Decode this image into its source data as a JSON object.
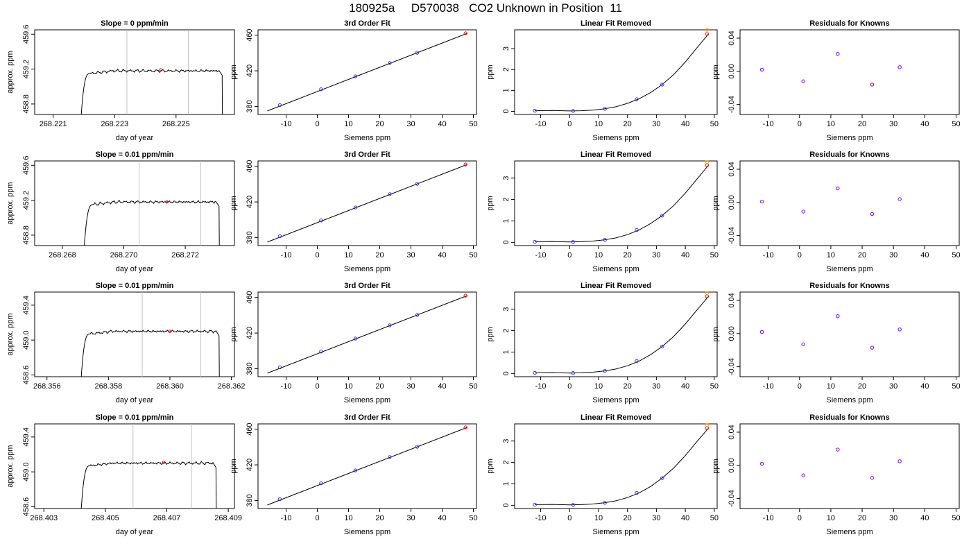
{
  "title": "180925a     D570038   CO2 Unknown in Position  11",
  "colors": {
    "line": "#000000",
    "vline": "#c0c0c0",
    "known": "#3333ff",
    "unknown": "#ff0000",
    "unknown_alt": "#ffa500",
    "resid": "#7b00ff"
  },
  "chart_data": [
    {
      "id": "r1-ts",
      "type": "line",
      "title": "Slope =  0  ppm/min",
      "xlabel": "day of year",
      "ylabel": "approx. ppm",
      "xlim": [
        268.2204,
        268.2269
      ],
      "ylim": [
        458.68,
        459.65
      ],
      "xticks": [
        268.221,
        268.223,
        268.225
      ],
      "xtick_labels": [
        "268.221",
        "268.223",
        "268.225"
      ],
      "yticks": [
        458.8,
        459.2,
        459.6
      ],
      "ytick_labels": [
        "458.8",
        "459.2",
        "459.6"
      ],
      "vlines": [
        268.2234,
        268.2254
      ],
      "trace": {
        "x_start": 268.2219,
        "x_rise_end": 268.2222,
        "x_fall_start": 268.2264,
        "x_end": 268.2265,
        "plateau": 459.18,
        "low": 458.6
      },
      "marker": {
        "x": 268.2245,
        "y": 459.19
      }
    },
    {
      "id": "r1-fit",
      "type": "scatter",
      "title": "3rd Order Fit",
      "xlabel": "Siemens ppm",
      "ylabel": "ppm",
      "xlim": [
        -19,
        51
      ],
      "ylim": [
        371,
        466
      ],
      "xticks": [
        -10,
        0,
        10,
        20,
        30,
        40,
        50
      ],
      "yticks": [
        380,
        420,
        460
      ],
      "fit_line": {
        "x": [
          -16,
          48
        ],
        "y": [
          375,
          462
        ]
      },
      "knowns": {
        "x": [
          -12,
          1.2,
          12.2,
          23.2,
          32
        ],
        "y": [
          381.5,
          399.3,
          413.8,
          428.7,
          440.3
        ]
      },
      "unknown": {
        "x": 47.5,
        "y": 462
      }
    },
    {
      "id": "r1-lin",
      "type": "scatter",
      "title": "Linear Fit Removed",
      "xlabel": "Siemens ppm",
      "ylabel": "ppm",
      "xlim": [
        -19,
        51
      ],
      "ylim": [
        -0.15,
        3.9
      ],
      "xticks": [
        -10,
        0,
        10,
        20,
        30,
        40,
        50
      ],
      "yticks": [
        0,
        1,
        2,
        3
      ],
      "curve": {
        "x": [
          -12,
          -6,
          0,
          4,
          8,
          12,
          16,
          20,
          24,
          28,
          32,
          36,
          40,
          44,
          48
        ],
        "y": [
          0.03,
          0.04,
          0.02,
          0.03,
          0.06,
          0.12,
          0.22,
          0.38,
          0.6,
          0.9,
          1.28,
          1.76,
          2.36,
          3.04,
          3.7
        ]
      },
      "knowns": {
        "x": [
          -12,
          1.2,
          12.2,
          23.2,
          32
        ],
        "y": [
          0.03,
          0.02,
          0.12,
          0.58,
          1.28
        ]
      },
      "unknown": {
        "x": 47.5,
        "y": 3.7
      },
      "unknown_alt": {
        "x": 47.5,
        "y": 3.9
      }
    },
    {
      "id": "r1-res",
      "type": "scatter",
      "title": "Residuals for Knowns",
      "xlabel": "Siemens ppm",
      "ylabel": "ppm",
      "xlim": [
        -19,
        51
      ],
      "ylim": [
        -0.052,
        0.05
      ],
      "xticks": [
        -10,
        0,
        10,
        20,
        30,
        40,
        50
      ],
      "yticks": [
        -0.04,
        0,
        0.04
      ],
      "ytick_labels": [
        "-0.04",
        "0.00",
        "0.04"
      ],
      "points": {
        "x": [
          -12,
          1.2,
          12.2,
          23.2,
          32
        ],
        "y": [
          0.002,
          -0.012,
          0.021,
          -0.016,
          0.005
        ]
      }
    },
    {
      "id": "r2-ts",
      "type": "line",
      "title": "Slope =  0.01  ppm/min",
      "xlabel": "day of year",
      "ylabel": "approx. ppm",
      "xlim": [
        268.2671,
        268.2736
      ],
      "ylim": [
        458.68,
        459.65
      ],
      "xticks": [
        268.268,
        268.27,
        268.272
      ],
      "xtick_labels": [
        "268.268",
        "268.270",
        "268.272"
      ],
      "yticks": [
        458.8,
        459.2,
        459.6
      ],
      "ytick_labels": [
        "458.8",
        "459.2",
        "459.6"
      ],
      "vlines": [
        268.2705,
        268.2725
      ],
      "trace": {
        "x_start": 268.2687,
        "x_rise_end": 268.269,
        "x_fall_start": 268.273,
        "x_end": 268.2731,
        "plateau": 459.18,
        "low": 458.6
      },
      "marker": {
        "x": 268.2714,
        "y": 459.18
      }
    },
    {
      "id": "r2-fit",
      "type": "scatter",
      "title": "3rd Order Fit",
      "xlabel": "Siemens ppm",
      "ylabel": "ppm",
      "xlim": [
        -19,
        51
      ],
      "ylim": [
        371,
        466
      ],
      "xticks": [
        -10,
        0,
        10,
        20,
        30,
        40,
        50
      ],
      "yticks": [
        380,
        420,
        460
      ],
      "fit_line": {
        "x": [
          -16,
          48
        ],
        "y": [
          375,
          462
        ]
      },
      "knowns": {
        "x": [
          -12,
          1.2,
          12.2,
          23.2,
          32
        ],
        "y": [
          381.5,
          399.3,
          413.8,
          428.7,
          440.3
        ]
      },
      "unknown": {
        "x": 47.5,
        "y": 462
      }
    },
    {
      "id": "r2-lin",
      "type": "scatter",
      "title": "Linear Fit Removed",
      "xlabel": "Siemens ppm",
      "ylabel": "ppm",
      "xlim": [
        -19,
        51
      ],
      "ylim": [
        -0.15,
        3.8
      ],
      "xticks": [
        -10,
        0,
        10,
        20,
        30,
        40,
        50
      ],
      "yticks": [
        0,
        1,
        2,
        3
      ],
      "curve": {
        "x": [
          -12,
          -6,
          0,
          4,
          8,
          12,
          16,
          20,
          24,
          28,
          32,
          36,
          40,
          44,
          48
        ],
        "y": [
          0.03,
          0.04,
          0.02,
          0.03,
          0.06,
          0.12,
          0.21,
          0.36,
          0.58,
          0.88,
          1.25,
          1.72,
          2.3,
          2.95,
          3.6
        ]
      },
      "knowns": {
        "x": [
          -12,
          1.2,
          12.2,
          23.2,
          32
        ],
        "y": [
          0.03,
          0.02,
          0.12,
          0.58,
          1.25
        ]
      },
      "unknown": {
        "x": 47.5,
        "y": 3.6
      },
      "unknown_alt": {
        "x": 47.5,
        "y": 3.75
      }
    },
    {
      "id": "r2-res",
      "type": "scatter",
      "title": "Residuals for Knowns",
      "xlabel": "Siemens ppm",
      "ylabel": "ppm",
      "xlim": [
        -19,
        51
      ],
      "ylim": [
        -0.052,
        0.05
      ],
      "xticks": [
        -10,
        0,
        10,
        20,
        30,
        40,
        50
      ],
      "yticks": [
        -0.04,
        0,
        0.04
      ],
      "ytick_labels": [
        "-0.04",
        "0.00",
        "0.04"
      ],
      "points": {
        "x": [
          -12,
          1.2,
          12.2,
          23.2,
          32
        ],
        "y": [
          0.001,
          -0.011,
          0.017,
          -0.014,
          0.004
        ]
      }
    },
    {
      "id": "r3-ts",
      "type": "line",
      "title": "Slope =  0.01  ppm/min",
      "xlabel": "day of year",
      "ylabel": "approx. ppm",
      "xlim": [
        268.3556,
        268.3621
      ],
      "ylim": [
        458.58,
        459.55
      ],
      "xticks": [
        268.356,
        268.358,
        268.36,
        268.362
      ],
      "xtick_labels": [
        "268.356",
        "268.358",
        "268.360",
        "268.362"
      ],
      "yticks": [
        458.6,
        459.0,
        459.4
      ],
      "ytick_labels": [
        "458.6",
        "459.0",
        "459.4"
      ],
      "vlines": [
        268.3591,
        268.361
      ],
      "trace": {
        "x_start": 268.3571,
        "x_rise_end": 268.3574,
        "x_fall_start": 268.3615,
        "x_end": 268.3616,
        "plateau": 459.1,
        "low": 458.5
      },
      "marker": {
        "x": 268.36,
        "y": 459.1
      }
    },
    {
      "id": "r3-fit",
      "type": "scatter",
      "title": "3rd Order Fit",
      "xlabel": "Siemens ppm",
      "ylabel": "ppm",
      "xlim": [
        -19,
        51
      ],
      "ylim": [
        371,
        466
      ],
      "xticks": [
        -10,
        0,
        10,
        20,
        30,
        40,
        50
      ],
      "yticks": [
        380,
        420,
        460
      ],
      "fit_line": {
        "x": [
          -16,
          48
        ],
        "y": [
          375,
          462
        ]
      },
      "knowns": {
        "x": [
          -12,
          1.2,
          12.2,
          23.2,
          32
        ],
        "y": [
          381.5,
          399.3,
          413.8,
          428.7,
          440.3
        ]
      },
      "unknown": {
        "x": 47.5,
        "y": 462
      }
    },
    {
      "id": "r3-lin",
      "type": "scatter",
      "title": "Linear Fit Removed",
      "xlabel": "Siemens ppm",
      "ylabel": "ppm",
      "xlim": [
        -19,
        51
      ],
      "ylim": [
        -0.15,
        3.8
      ],
      "xticks": [
        -10,
        0,
        10,
        20,
        30,
        40,
        50
      ],
      "yticks": [
        0,
        1,
        2,
        3
      ],
      "curve": {
        "x": [
          -12,
          -6,
          0,
          4,
          8,
          12,
          16,
          20,
          24,
          28,
          32,
          36,
          40,
          44,
          48
        ],
        "y": [
          0.03,
          0.04,
          0.02,
          0.03,
          0.06,
          0.12,
          0.21,
          0.36,
          0.58,
          0.88,
          1.26,
          1.73,
          2.31,
          2.96,
          3.6
        ]
      },
      "knowns": {
        "x": [
          -12,
          1.2,
          12.2,
          23.2,
          32
        ],
        "y": [
          0.03,
          0.02,
          0.12,
          0.58,
          1.26
        ]
      },
      "unknown": {
        "x": 47.5,
        "y": 3.6
      },
      "unknown_alt": {
        "x": 47.5,
        "y": 3.75
      }
    },
    {
      "id": "r3-res",
      "type": "scatter",
      "title": "Residuals for Knowns",
      "xlabel": "Siemens ppm",
      "ylabel": "ppm",
      "xlim": [
        -19,
        51
      ],
      "ylim": [
        -0.052,
        0.05
      ],
      "xticks": [
        -10,
        0,
        10,
        20,
        30,
        40,
        50
      ],
      "yticks": [
        -0.04,
        0,
        0.04
      ],
      "ytick_labels": [
        "-0.04",
        "0.00",
        "0.04"
      ],
      "points": {
        "x": [
          -12,
          1.2,
          12.2,
          23.2,
          32
        ],
        "y": [
          0.002,
          -0.013,
          0.021,
          -0.017,
          0.005
        ]
      }
    },
    {
      "id": "r4-ts",
      "type": "line",
      "title": "Slope =  0.01  ppm/min",
      "xlabel": "day of year",
      "ylabel": "approx. ppm",
      "xlim": [
        268.4027,
        268.4092
      ],
      "ylim": [
        458.58,
        459.55
      ],
      "xticks": [
        268.403,
        268.405,
        268.407,
        268.409
      ],
      "xtick_labels": [
        "268.403",
        "268.405",
        "268.407",
        "268.409"
      ],
      "yticks": [
        458.6,
        459.0,
        459.4
      ],
      "ytick_labels": [
        "458.6",
        "459.0",
        "459.4"
      ],
      "vlines": [
        268.4059,
        268.4078
      ],
      "trace": {
        "x_start": 268.4042,
        "x_rise_end": 268.4045,
        "x_fall_start": 268.4085,
        "x_end": 268.4086,
        "plateau": 459.1,
        "low": 458.5
      },
      "marker": {
        "x": 268.4069,
        "y": 459.11
      }
    },
    {
      "id": "r4-fit",
      "type": "scatter",
      "title": "3rd Order Fit",
      "xlabel": "Siemens ppm",
      "ylabel": "ppm",
      "xlim": [
        -19,
        51
      ],
      "ylim": [
        371,
        466
      ],
      "xticks": [
        -10,
        0,
        10,
        20,
        30,
        40,
        50
      ],
      "yticks": [
        380,
        420,
        460
      ],
      "fit_line": {
        "x": [
          -16,
          48
        ],
        "y": [
          375,
          462
        ]
      },
      "knowns": {
        "x": [
          -12,
          1.2,
          12.2,
          23.2,
          32
        ],
        "y": [
          381.5,
          399.3,
          413.8,
          428.7,
          440.3
        ]
      },
      "unknown": {
        "x": 47.5,
        "y": 462
      }
    },
    {
      "id": "r4-lin",
      "type": "scatter",
      "title": "Linear Fit Removed",
      "xlabel": "Siemens ppm",
      "ylabel": "ppm",
      "xlim": [
        -19,
        51
      ],
      "ylim": [
        -0.15,
        3.8
      ],
      "xticks": [
        -10,
        0,
        10,
        20,
        30,
        40,
        50
      ],
      "yticks": [
        0,
        1,
        2,
        3
      ],
      "curve": {
        "x": [
          -12,
          -6,
          0,
          4,
          8,
          12,
          16,
          20,
          24,
          28,
          32,
          36,
          40,
          44,
          48
        ],
        "y": [
          0.03,
          0.04,
          0.02,
          0.03,
          0.06,
          0.12,
          0.21,
          0.36,
          0.58,
          0.88,
          1.27,
          1.74,
          2.32,
          2.97,
          3.6
        ]
      },
      "knowns": {
        "x": [
          -12,
          1.2,
          12.2,
          23.2,
          32
        ],
        "y": [
          0.03,
          0.02,
          0.12,
          0.58,
          1.27
        ]
      },
      "unknown": {
        "x": 47.5,
        "y": 3.6
      },
      "unknown_alt": {
        "x": 47.5,
        "y": 3.75
      }
    },
    {
      "id": "r4-res",
      "type": "scatter",
      "title": "Residuals for Knowns",
      "xlabel": "Siemens ppm",
      "ylabel": "ppm",
      "xlim": [
        -19,
        51
      ],
      "ylim": [
        -0.052,
        0.05
      ],
      "xticks": [
        -10,
        0,
        10,
        20,
        30,
        40,
        50
      ],
      "yticks": [
        -0.04,
        0,
        0.04
      ],
      "ytick_labels": [
        "-0.04",
        "0.00",
        "0.04"
      ],
      "points": {
        "x": [
          -12,
          1.2,
          12.2,
          23.2,
          32
        ],
        "y": [
          0.002,
          -0.012,
          0.019,
          -0.015,
          0.005
        ]
      }
    }
  ]
}
